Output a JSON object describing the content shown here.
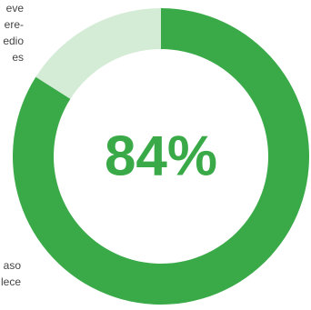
{
  "chart_data": {
    "type": "pie",
    "variant": "donut",
    "slices": [
      {
        "label": "",
        "value": 84,
        "color": "#3aaa48"
      },
      {
        "label": "",
        "value": 16,
        "color": "#d4ecd6"
      }
    ],
    "center_label": "84%",
    "center_label_color": "#3aaa48",
    "title": ""
  },
  "side_text": {
    "top": [
      "eve",
      "ere-",
      "edio",
      "es"
    ],
    "bottom": [
      "",
      "aso",
      "lece"
    ]
  }
}
